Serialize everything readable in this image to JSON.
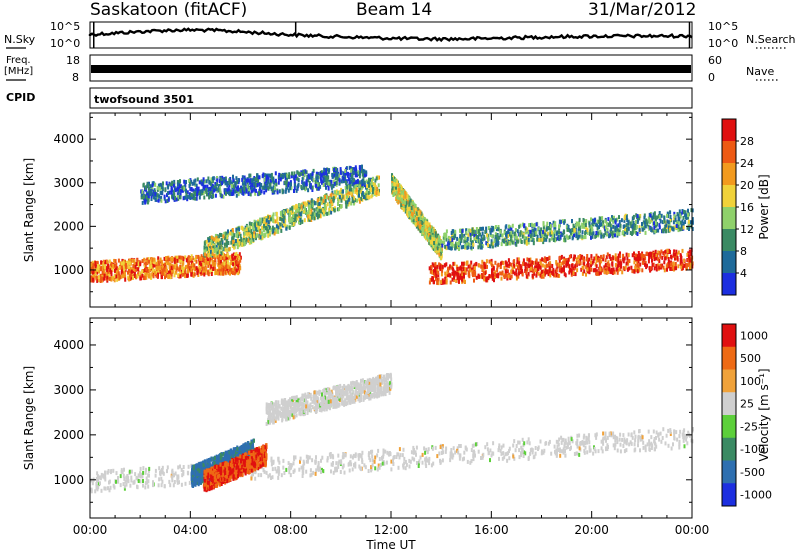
{
  "header": {
    "station": "Saskatoon (fitACF)",
    "beam": "Beam 14",
    "date": "31/Mar/2012"
  },
  "status_panels": {
    "nsky_label": "N.Sky",
    "nsearch_label": "N.Search",
    "freq_label_top": "Freq.",
    "freq_label_bottom": "[MHz]",
    "nave_label": "Nave",
    "cpid_label": "CPID",
    "cpid_value": "twofsound 3501",
    "noise_ticks_left": [
      "10^5",
      "10^0"
    ],
    "noise_ticks_right": [
      "10^5",
      "10^0"
    ],
    "freq_ticks_left": [
      "18",
      "8"
    ],
    "nave_ticks_right": [
      "60",
      "0"
    ]
  },
  "x_axis": {
    "label": "Time UT",
    "ticks": [
      "00:00",
      "04:00",
      "08:00",
      "12:00",
      "16:00",
      "20:00",
      "00:00"
    ]
  },
  "chart_data": [
    {
      "type": "heatmap",
      "panel": "power",
      "ylabel": "Slant Range [km]",
      "ylim": [
        150,
        4600
      ],
      "yticks": [
        1000,
        2000,
        3000,
        4000
      ],
      "xlim_hours": [
        0,
        24
      ],
      "colorbar": {
        "label": "Power [dB]",
        "range": [
          0,
          32
        ],
        "ticks": [
          4,
          8,
          12,
          16,
          20,
          24,
          28
        ],
        "colors": [
          "#1c2fe0",
          "#1e6a9a",
          "#3a8a63",
          "#8fd16b",
          "#f0d23a",
          "#f29a1e",
          "#ee5a14",
          "#e01010"
        ]
      },
      "features": [
        {
          "name": "lower band",
          "t_hours": [
            0,
            6
          ],
          "range_km": [
            1000,
            1200
          ],
          "power_db": 24
        },
        {
          "name": "rising arc",
          "t_hours": [
            4.5,
            11.5
          ],
          "range_km": [
            1500,
            3000
          ],
          "power_db": 14
        },
        {
          "name": "upper band",
          "t_hours": [
            2,
            11
          ],
          "range_km": [
            2800,
            3200
          ],
          "power_db": 6
        },
        {
          "name": "descending arc",
          "t_hours": [
            12,
            14
          ],
          "range_km": [
            3000,
            1500
          ],
          "power_db": 16
        },
        {
          "name": "evening band",
          "t_hours": [
            13.5,
            24
          ],
          "range_km": [
            950,
            1300
          ],
          "power_db": 28
        },
        {
          "name": "evening upper",
          "t_hours": [
            14,
            24
          ],
          "range_km": [
            1700,
            2200
          ],
          "power_db": 10
        }
      ]
    },
    {
      "type": "heatmap",
      "panel": "velocity",
      "ylabel": "Slant Range [km]",
      "ylim": [
        150,
        4600
      ],
      "yticks": [
        1000,
        2000,
        3000,
        4000
      ],
      "xlim_hours": [
        0,
        24
      ],
      "colorbar": {
        "label": "Velocity [m s^-1]",
        "tick_labels": [
          "1000",
          "500",
          "100",
          "25",
          "-25",
          "-100",
          "-500",
          "-1000"
        ],
        "colors": [
          "#1c2fe0",
          "#2e6fb0",
          "#3a8a63",
          "#5ccf3a",
          "#cfcfcf",
          "#f0a23a",
          "#ee6a14",
          "#e01010"
        ]
      },
      "features": [
        {
          "name": "ground scatter",
          "t_hours": [
            0,
            24
          ],
          "range_km": [
            1000,
            2000
          ],
          "velocity": 0
        },
        {
          "name": "upper arc",
          "t_hours": [
            7,
            12
          ],
          "range_km": [
            2500,
            3200
          ],
          "velocity": 0
        },
        {
          "name": "positive flow",
          "t_hours": [
            4,
            6.5
          ],
          "range_km": [
            1100,
            1700
          ],
          "velocity": 400
        },
        {
          "name": "negative flow",
          "t_hours": [
            4.5,
            7
          ],
          "range_km": [
            1000,
            1600
          ],
          "velocity": -300
        }
      ]
    }
  ]
}
